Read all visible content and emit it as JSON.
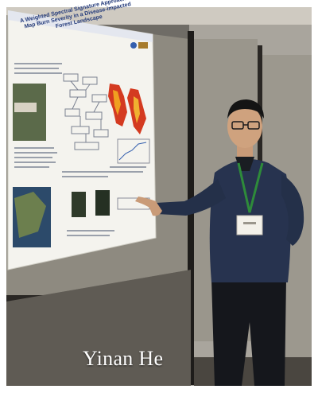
{
  "caption": {
    "name": "Yinan He"
  },
  "poster": {
    "title": "A Weighted Spectral Signature Approach to Map Burn Severity in a Disease-impacted Forest Landscape"
  },
  "colors": {
    "background": "#ffffff",
    "caption_text": "#ffffff",
    "poster_title": "#233a7a",
    "panel_wall": "#8e8a80",
    "burn_map_red": "#d43a20",
    "lanyard_green": "#2e8b3a",
    "sweater_navy": "#27334f"
  }
}
